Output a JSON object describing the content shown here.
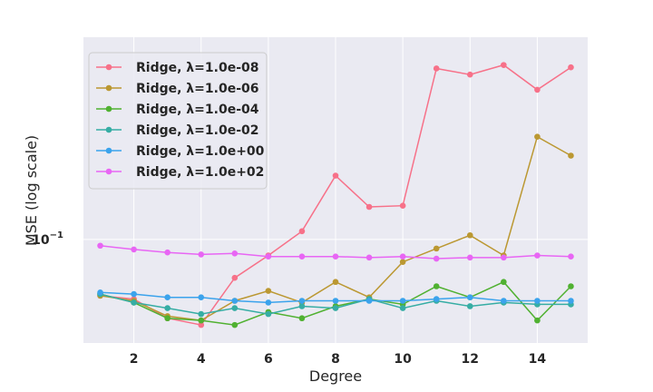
{
  "chart_data": {
    "type": "line",
    "title": "",
    "xlabel": "Degree",
    "ylabel": "MSE (log scale)",
    "x": [
      1,
      2,
      3,
      4,
      5,
      6,
      7,
      8,
      9,
      10,
      11,
      12,
      13,
      14,
      15
    ],
    "xlim": [
      0.5,
      15.5
    ],
    "ylim": [
      0.03,
      1.05
    ],
    "yscale": "log",
    "xticks": [
      2,
      4,
      6,
      8,
      10,
      12,
      14
    ],
    "yticks": [
      {
        "value": 0.1,
        "base": "10",
        "exp": "−1"
      }
    ],
    "grid": true,
    "legend_position": "upper-left",
    "background": "#eaeaf2",
    "series": [
      {
        "name": "Ridge, λ=1.0e-08",
        "color": "#f77189",
        "values": [
          0.052,
          0.05,
          0.04,
          0.037,
          0.064,
          0.083,
          0.11,
          0.21,
          0.146,
          0.148,
          0.73,
          0.68,
          0.76,
          0.57,
          0.74
        ]
      },
      {
        "name": "Ridge, λ=1.0e-06",
        "color": "#bb9832",
        "values": [
          0.052,
          0.049,
          0.041,
          0.039,
          0.049,
          0.055,
          0.048,
          0.061,
          0.051,
          0.077,
          0.09,
          0.105,
          0.083,
          0.33,
          0.265
        ]
      },
      {
        "name": "Ridge, λ=1.0e-04",
        "color": "#50b131",
        "values": [
          0.053,
          0.048,
          0.04,
          0.039,
          0.037,
          0.043,
          0.04,
          0.046,
          0.05,
          0.047,
          0.058,
          0.051,
          0.061,
          0.039,
          0.058
        ]
      },
      {
        "name": "Ridge, λ=1.0e-02",
        "color": "#36ada4",
        "values": [
          0.053,
          0.048,
          0.045,
          0.042,
          0.045,
          0.042,
          0.046,
          0.045,
          0.05,
          0.045,
          0.049,
          0.046,
          0.048,
          0.047,
          0.047
        ]
      },
      {
        "name": "Ridge, λ=1.0e+00",
        "color": "#3ba3ec",
        "values": [
          0.054,
          0.053,
          0.051,
          0.051,
          0.049,
          0.048,
          0.049,
          0.049,
          0.049,
          0.049,
          0.05,
          0.051,
          0.049,
          0.049,
          0.049
        ]
      },
      {
        "name": "Ridge, λ=1.0e+02",
        "color": "#e866f4",
        "values": [
          0.093,
          0.089,
          0.086,
          0.084,
          0.085,
          0.082,
          0.082,
          0.082,
          0.081,
          0.082,
          0.08,
          0.081,
          0.081,
          0.083,
          0.082
        ]
      }
    ]
  }
}
